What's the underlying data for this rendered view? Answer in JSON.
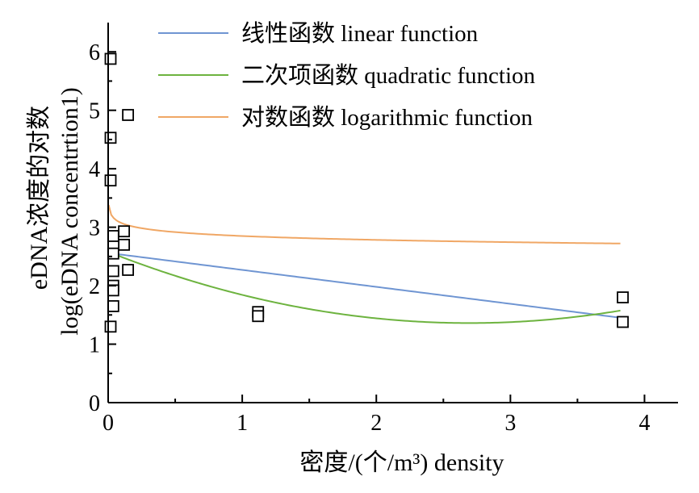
{
  "chart_data": {
    "type": "scatter",
    "xlabel": "密度/(个/m³) density",
    "ylabel_line1": "eDNA浓度的对数",
    "ylabel_line2": "log(eDNA concentrtion1)",
    "xlim": [
      0,
      4.25
    ],
    "ylim": [
      0,
      6.5
    ],
    "x_ticks": [
      0,
      1,
      2,
      3,
      4
    ],
    "y_ticks": [
      0,
      1,
      2,
      3,
      4,
      5,
      6
    ],
    "x_minor_step": 0.5,
    "y_minor_step": 0.5,
    "grid": false,
    "legend_position": "top",
    "points": {
      "x": [
        0.0,
        0.0,
        0.0,
        0.0,
        0.02,
        0.02,
        0.02,
        0.02,
        0.02,
        0.02,
        0.1,
        0.1,
        0.13,
        0.13,
        1.1,
        1.1,
        3.82,
        3.82
      ],
      "y": [
        5.88,
        4.53,
        3.8,
        1.3,
        2.85,
        2.55,
        2.25,
        2.0,
        1.92,
        1.65,
        2.93,
        2.7,
        4.92,
        2.27,
        1.55,
        1.48,
        1.8,
        1.38
      ]
    },
    "series": [
      {
        "name": "线性函数 linear function",
        "kind": "linear",
        "color": "#6f95d2",
        "a": 2.56,
        "b": -0.29
      },
      {
        "name": "二次项函数 quadratic function",
        "kind": "quadratic",
        "color": "#6db33f",
        "a": 2.58,
        "b": -0.905,
        "c": 0.168
      },
      {
        "name": "对数函数 logarithmic function",
        "kind": "log",
        "color": "#f0a765",
        "a": 2.85,
        "b": 0.096
      }
    ]
  }
}
